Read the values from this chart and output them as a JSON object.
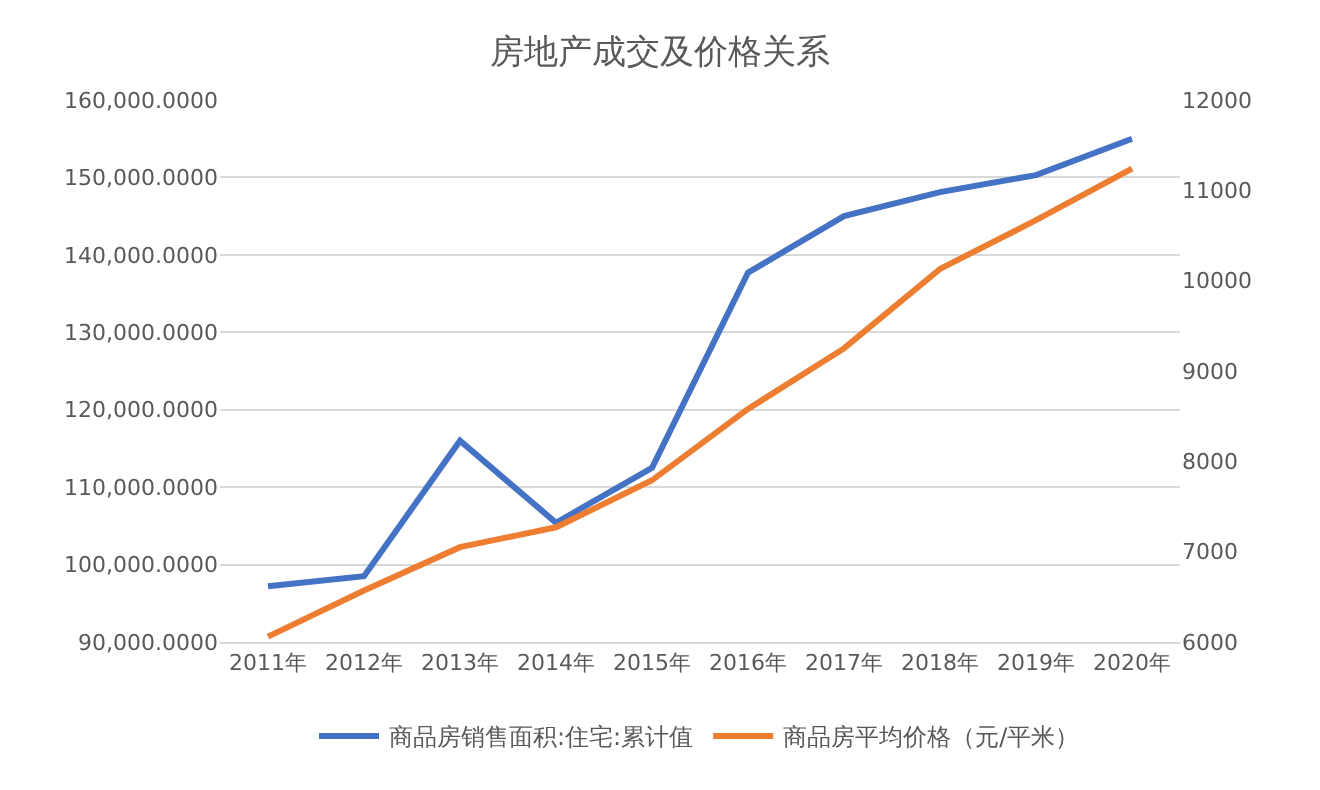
{
  "chart_data": {
    "type": "line",
    "title": "房地产成交及价格关系",
    "categories": [
      "2011年",
      "2012年",
      "2013年",
      "2014年",
      "2015年",
      "2016年",
      "2017年",
      "2018年",
      "2019年",
      "2020年"
    ],
    "series": [
      {
        "name": "商品房销售面积:住宅:累计值",
        "color": "#4472c4",
        "values": [
          97200,
          98500,
          116000,
          105400,
          112500,
          137700,
          145000,
          148100,
          150300,
          155000
        ]
      },
      {
        "name": "商品房平均价格（元/平米）",
        "color": "#ed7d31",
        "axis": "y2",
        "values": [
          6060,
          6570,
          7050,
          7270,
          7790,
          8580,
          9250,
          10130,
          10670,
          11240
        ]
      }
    ],
    "ylim": [
      90000,
      160000
    ],
    "yticks": [
      {
        "value": 90000,
        "label": "90,000.0000"
      },
      {
        "value": 100000,
        "label": "100,000.0000"
      },
      {
        "value": 110000,
        "label": "110,000.0000"
      },
      {
        "value": 120000,
        "label": "120,000.0000"
      },
      {
        "value": 130000,
        "label": "130,000.0000"
      },
      {
        "value": 140000,
        "label": "140,000.0000"
      },
      {
        "value": 150000,
        "label": "150,000.0000"
      },
      {
        "value": 160000,
        "label": "160,000.0000"
      }
    ],
    "y2lim": [
      6000,
      12000
    ],
    "y2ticks": [
      6000,
      7000,
      8000,
      9000,
      10000,
      11000,
      12000
    ],
    "grid": "y",
    "legend": "bottom",
    "marker": "none",
    "line_style": "solid"
  }
}
